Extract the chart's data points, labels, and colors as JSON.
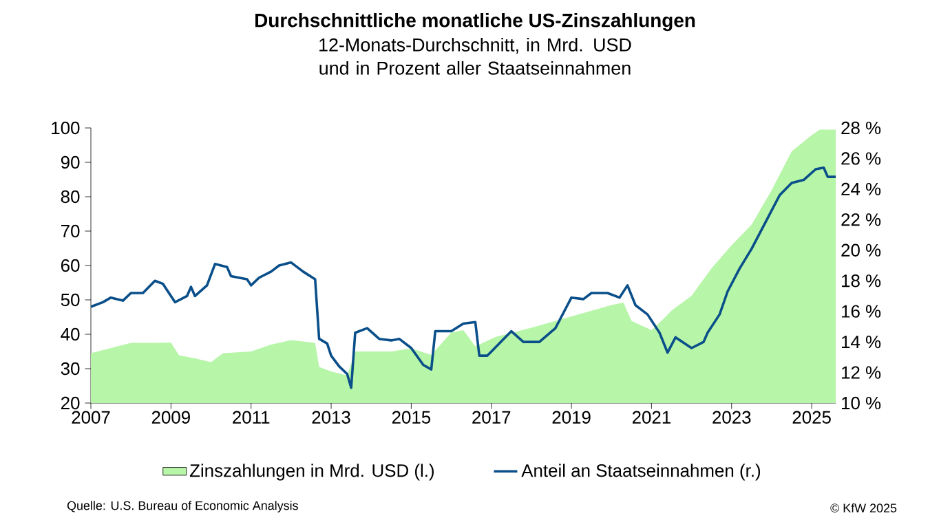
{
  "chart_data": {
    "type": "area",
    "title": "Durchschnittliche monatliche US-Zinszahlungen",
    "subtitle": "12-Monats-Durchschnitt, in Mrd. USD und in Prozent aller Staatseinnahmen",
    "series": [
      {
        "name": "Zinszahlungen in Mrd. USD (l.)",
        "color": "#b7f5a8",
        "x": [
          2007.0,
          2007.5,
          2008.0,
          2008.5,
          2009.0,
          2009.2,
          2009.6,
          2010.0,
          2010.3,
          2011.0,
          2011.5,
          2012.0,
          2012.6,
          2012.7,
          2013.0,
          2013.4,
          2013.6,
          2014.0,
          2014.5,
          2015.0,
          2015.5,
          2016.0,
          2016.3,
          2016.6,
          2017.1,
          2018.0,
          2019.0,
          2020.0,
          2020.3,
          2020.5,
          2021.0,
          2021.3,
          2021.5,
          2022.0,
          2022.5,
          2023.0,
          2023.5,
          2024.0,
          2024.5,
          2025.0,
          2025.2,
          2025.6
        ],
        "values": [
          34.5,
          36,
          37.5,
          37.5,
          37.6,
          33.9,
          33,
          31.9,
          34.5,
          35,
          37,
          38.3,
          37.5,
          30.5,
          29.2,
          28,
          35,
          35,
          35,
          35.9,
          34,
          40.5,
          41.2,
          36.5,
          39.2,
          41.9,
          45.2,
          48.5,
          49.2,
          43.9,
          41.2,
          44.5,
          46.9,
          51.2,
          59.2,
          65.9,
          71.9,
          81.9,
          93.2,
          97.9,
          99.5,
          99.5
        ]
      },
      {
        "name": "Anteil an Staatseinnahmen (r.)",
        "type": "line",
        "axis": "y2",
        "color": "#0a4f8a",
        "x": [
          2007.0,
          2007.3,
          2007.5,
          2007.8,
          2008.0,
          2008.3,
          2008.6,
          2008.8,
          2009.1,
          2009.4,
          2009.5,
          2009.6,
          2009.9,
          2010.1,
          2010.4,
          2010.5,
          2010.9,
          2011.0,
          2011.2,
          2011.5,
          2011.7,
          2012.0,
          2012.3,
          2012.6,
          2012.7,
          2012.9,
          2013.0,
          2013.2,
          2013.4,
          2013.5,
          2013.6,
          2013.9,
          2014.2,
          2014.5,
          2014.7,
          2015.0,
          2015.3,
          2015.5,
          2015.6,
          2016.0,
          2016.3,
          2016.6,
          2016.7,
          2016.9,
          2017.2,
          2017.5,
          2017.8,
          2018.2,
          2018.6,
          2018.9,
          2019.0,
          2019.3,
          2019.5,
          2019.9,
          2020.2,
          2020.4,
          2020.6,
          2020.9,
          2021.2,
          2021.4,
          2021.6,
          2022.0,
          2022.3,
          2022.4,
          2022.7,
          2022.9,
          2023.2,
          2023.5,
          2023.9,
          2024.2,
          2024.5,
          2024.8,
          2025.1,
          2025.3,
          2025.4,
          2025.6
        ],
        "values": [
          16.3,
          16.6,
          16.9,
          16.7,
          17.2,
          17.2,
          18.0,
          17.8,
          16.6,
          17.0,
          17.6,
          17.0,
          17.7,
          19.1,
          18.9,
          18.3,
          18.1,
          17.7,
          18.2,
          18.6,
          19.0,
          19.2,
          18.6,
          18.1,
          14.2,
          13.9,
          13.1,
          12.4,
          11.9,
          11.0,
          14.6,
          14.9,
          14.2,
          14.1,
          14.2,
          13.6,
          12.5,
          12.2,
          14.7,
          14.7,
          15.2,
          15.3,
          13.1,
          13.1,
          13.9,
          14.7,
          14.0,
          14.0,
          14.9,
          16.4,
          16.9,
          16.8,
          17.2,
          17.2,
          16.9,
          17.7,
          16.4,
          15.8,
          14.6,
          13.3,
          14.3,
          13.6,
          14.0,
          14.6,
          15.8,
          17.3,
          18.8,
          20.1,
          22.1,
          23.6,
          24.4,
          24.6,
          25.3,
          25.4,
          24.8,
          24.8
        ]
      }
    ],
    "xlim": [
      2007,
      2025.6
    ],
    "xticks": [
      2007,
      2009,
      2011,
      2013,
      2015,
      2017,
      2019,
      2021,
      2023,
      2025
    ],
    "ylim": [
      20,
      100
    ],
    "yticks": [
      20,
      30,
      40,
      50,
      60,
      70,
      80,
      90,
      100
    ],
    "y2lim": [
      10,
      28
    ],
    "y2ticks": [
      {
        "value": 10,
        "label": "10 %"
      },
      {
        "value": 12,
        "label": "12 %"
      },
      {
        "value": 14,
        "label": "14 %"
      },
      {
        "value": 16,
        "label": "16 %"
      },
      {
        "value": 18,
        "label": "18 %"
      },
      {
        "value": 20,
        "label": "20 %"
      },
      {
        "value": 22,
        "label": "22 %"
      },
      {
        "value": 24,
        "label": "24 %"
      },
      {
        "value": 26,
        "label": "26 %"
      },
      {
        "value": 28,
        "label": "28 %"
      }
    ],
    "legend": "bottom",
    "grid": false,
    "annotations": [
      "Quelle: U.S. Bureau of Economic Analysis",
      "© KfW 2025"
    ]
  }
}
